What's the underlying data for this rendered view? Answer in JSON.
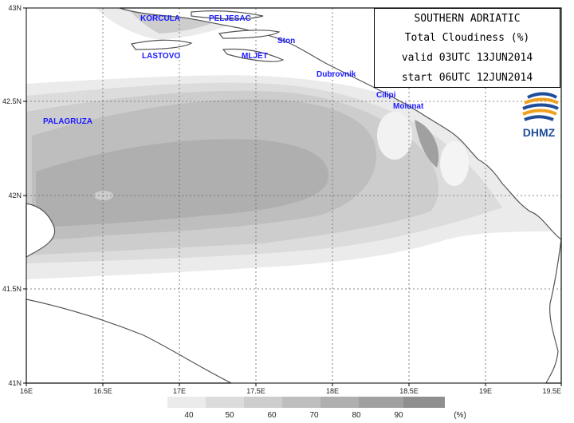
{
  "title": {
    "line1": "SOUTHERN ADRIATIC",
    "line2": "Total Cloudiness (%)",
    "line3": "valid 03UTC 13JUN2014",
    "line4": "start 06UTC 12JUN2014"
  },
  "logo": {
    "label": "DHMZ",
    "icon": "dhmz-swirl-logo"
  },
  "axes": {
    "y_ticks": [
      "43N",
      "42.5N",
      "42N",
      "41.5N",
      "41N"
    ],
    "x_ticks": [
      "16E",
      "16.5E",
      "17E",
      "17.5E",
      "18E",
      "18.5E",
      "19E",
      "19.5E"
    ]
  },
  "places": {
    "korcula": "KORCULA",
    "peljesac": "PELJESAC",
    "ston": "Ston",
    "lastovo": "LASTOVO",
    "mljet": "MLJET",
    "dubrovnik": "Dubrovnik",
    "palagruza": "PALAGRUZA",
    "cilipi": "Cilipi",
    "molunat": "Molunat"
  },
  "legend": {
    "labels": [
      "40",
      "50",
      "60",
      "70",
      "80",
      "90"
    ],
    "unit": "(%)",
    "colors": [
      "#ebebeb",
      "#dcdcdc",
      "#cdcdcd",
      "#bebebe",
      "#afafaf",
      "#a0a0a0",
      "#8f8f8f"
    ]
  },
  "colors": {
    "place_label": "#1a1aff",
    "coastline": "#555555",
    "logo_blue": "#1f4d9a",
    "logo_orange": "#f0a020"
  }
}
